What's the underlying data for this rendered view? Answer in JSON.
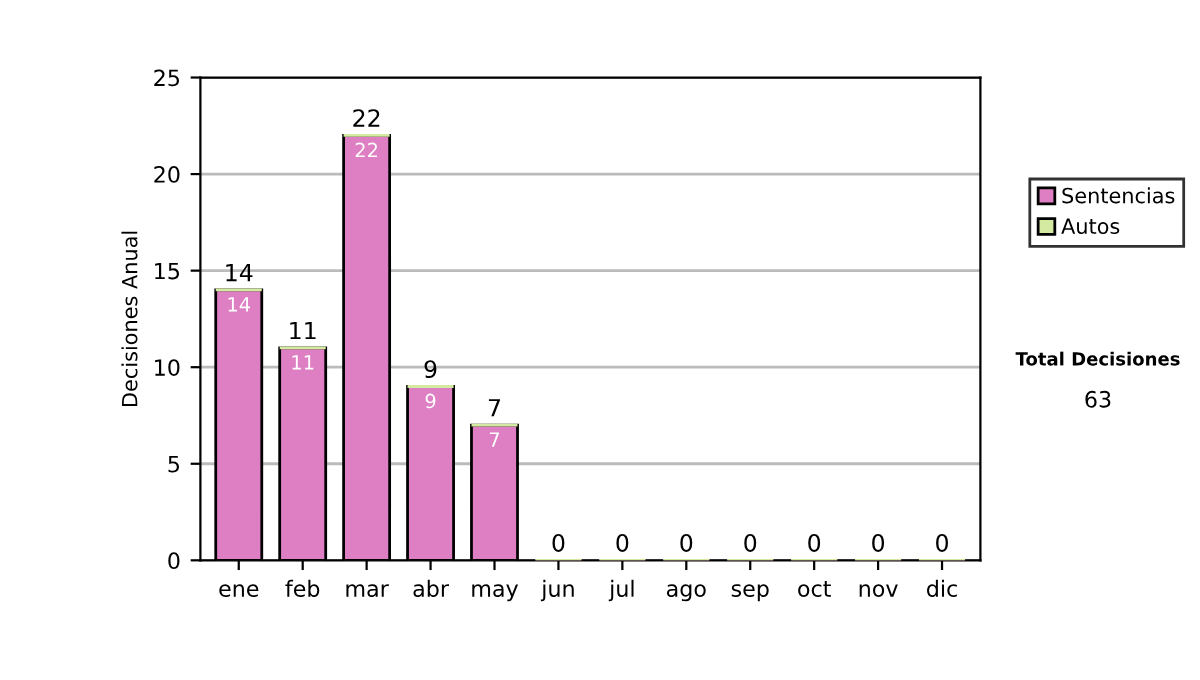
{
  "chart_data": {
    "type": "bar",
    "stacked": true,
    "ylabel": "Decisiones Anual",
    "categories": [
      "ene",
      "feb",
      "mar",
      "abr",
      "may",
      "jun",
      "jul",
      "ago",
      "sep",
      "oct",
      "nov",
      "dic"
    ],
    "series": [
      {
        "name": "Sentencias",
        "color": "#de7fc4",
        "values": [
          14,
          11,
          22,
          9,
          7,
          0,
          0,
          0,
          0,
          0,
          0,
          0
        ],
        "value_labels": [
          "14",
          "11",
          "22",
          "9",
          "7",
          null,
          null,
          null,
          null,
          null,
          null,
          null
        ]
      },
      {
        "name": "Autos",
        "color": "#d4eaa0",
        "values": [
          0,
          0,
          0,
          0,
          0,
          0,
          0,
          0,
          0,
          0,
          0,
          0
        ]
      }
    ],
    "totals": [
      "14",
      "11",
      "22",
      "9",
      "7",
      "0",
      "0",
      "0",
      "0",
      "0",
      "0",
      "0"
    ],
    "ylim": [
      0,
      25
    ],
    "yticks": [
      0,
      5,
      10,
      15,
      20,
      25
    ],
    "grid": "y",
    "legend": "right",
    "annotations": [
      "Total Decisiones",
      "63"
    ]
  }
}
